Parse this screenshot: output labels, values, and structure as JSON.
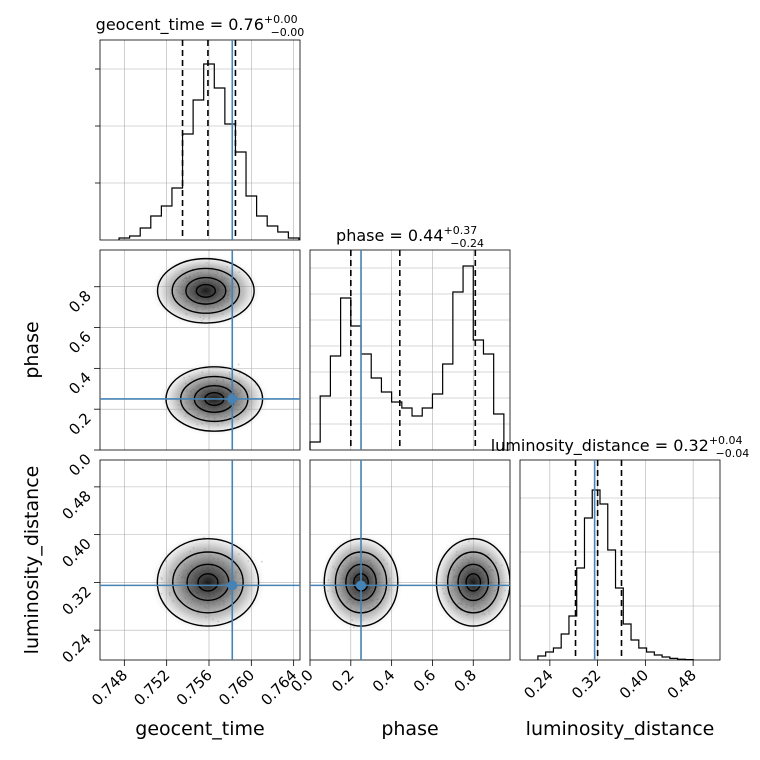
{
  "chart_data": {
    "type": "corner",
    "parameters": [
      "geocent_time",
      "phase",
      "luminosity_distance"
    ],
    "colors": {
      "truth": "#4682b4",
      "hist": "#000000",
      "quantile": "#000000",
      "scatter": "#9e9e9e",
      "grid": "#b0b0b0"
    },
    "truths": {
      "geocent_time": 0.7582,
      "phase": 0.25,
      "luminosity_distance": 0.315
    },
    "ranges": {
      "geocent_time": [
        0.7457,
        0.7646
      ],
      "phase": [
        0.0,
        0.98
      ],
      "luminosity_distance": [
        0.19,
        0.525
      ]
    },
    "ticks": {
      "geocent_time": [
        0.748,
        0.752,
        0.756,
        0.76,
        0.764
      ],
      "phase": [
        0.0,
        0.2,
        0.4,
        0.6,
        0.8
      ],
      "luminosity_distance": [
        0.24,
        0.32,
        0.4,
        0.48
      ]
    },
    "tick_labels": {
      "geocent_time": [
        "0.748",
        "0.752",
        "0.756",
        "0.760",
        "0.764"
      ],
      "phase_x": [
        "0.0",
        "0.2",
        "0.4",
        "0.6",
        "0.8"
      ],
      "phase_y": [
        "0.0",
        "0.2",
        "0.4",
        "0.6",
        "0.8"
      ],
      "luminosity_distance": [
        "0.24",
        "0.32",
        "0.40",
        "0.48"
      ]
    },
    "titles": [
      {
        "param": "geocent_time",
        "prefix": "geocent_time = ",
        "value": "0.76",
        "plus": "+0.00",
        "minus": "−0.00"
      },
      {
        "param": "phase",
        "prefix": "phase = ",
        "value": "0.44",
        "plus": "+0.37",
        "minus": "−0.24"
      },
      {
        "param": "luminosity_distance",
        "prefix": "luminosity_distance = ",
        "value": "0.32",
        "plus": "+0.04",
        "minus": "−0.04"
      }
    ],
    "axis_labels": {
      "x": [
        "geocent_time",
        "phase",
        "luminosity_distance"
      ],
      "y": [
        "phase",
        "luminosity_distance"
      ]
    },
    "quantiles": {
      "geocent_time": [
        0.7535,
        0.7559,
        0.7585
      ],
      "phase": [
        0.2,
        0.44,
        0.81
      ],
      "luminosity_distance": [
        0.283,
        0.32,
        0.36
      ]
    },
    "histograms": {
      "geocent_time": {
        "edges": [
          0.7475,
          0.7485,
          0.7495,
          0.7505,
          0.7515,
          0.7525,
          0.7535,
          0.7545,
          0.7555,
          0.7565,
          0.7575,
          0.7585,
          0.7595,
          0.7605,
          0.7615,
          0.7625,
          0.7635,
          0.7645
        ],
        "counts": [
          0.01,
          0.02,
          0.06,
          0.12,
          0.17,
          0.26,
          0.53,
          0.7,
          0.88,
          0.76,
          0.58,
          0.44,
          0.22,
          0.12,
          0.07,
          0.04,
          0.01
        ]
      },
      "phase": {
        "edges": [
          0.0,
          0.05,
          0.1,
          0.15,
          0.2,
          0.25,
          0.3,
          0.35,
          0.4,
          0.45,
          0.5,
          0.55,
          0.6,
          0.65,
          0.7,
          0.75,
          0.8,
          0.85,
          0.9,
          0.95
        ],
        "counts": [
          0.04,
          0.27,
          0.47,
          0.76,
          0.62,
          0.48,
          0.36,
          0.29,
          0.24,
          0.21,
          0.17,
          0.21,
          0.28,
          0.43,
          0.79,
          0.92,
          0.55,
          0.48,
          0.18
        ]
      },
      "luminosity_distance": {
        "edges": [
          0.22,
          0.233,
          0.246,
          0.259,
          0.272,
          0.285,
          0.298,
          0.311,
          0.324,
          0.337,
          0.35,
          0.363,
          0.376,
          0.389,
          0.402,
          0.415,
          0.428,
          0.441,
          0.454,
          0.467,
          0.48
        ],
        "counts": [
          0.02,
          0.04,
          0.06,
          0.13,
          0.22,
          0.46,
          0.71,
          0.85,
          0.78,
          0.55,
          0.36,
          0.18,
          0.1,
          0.06,
          0.04,
          0.025,
          0.015,
          0.008,
          0.004,
          0.002
        ]
      }
    },
    "density_modes": {
      "phase_vs_geocent_time": [
        {
          "x": 0.7557,
          "y": 0.78
        },
        {
          "x": 0.7565,
          "y": 0.25
        }
      ],
      "luminosity_distance_vs_geocent_time": [
        {
          "x": 0.7559,
          "y": 0.32
        }
      ],
      "luminosity_distance_vs_phase": [
        {
          "x": 0.25,
          "y": 0.32
        },
        {
          "x": 0.8,
          "y": 0.32
        }
      ]
    },
    "grid": true
  }
}
